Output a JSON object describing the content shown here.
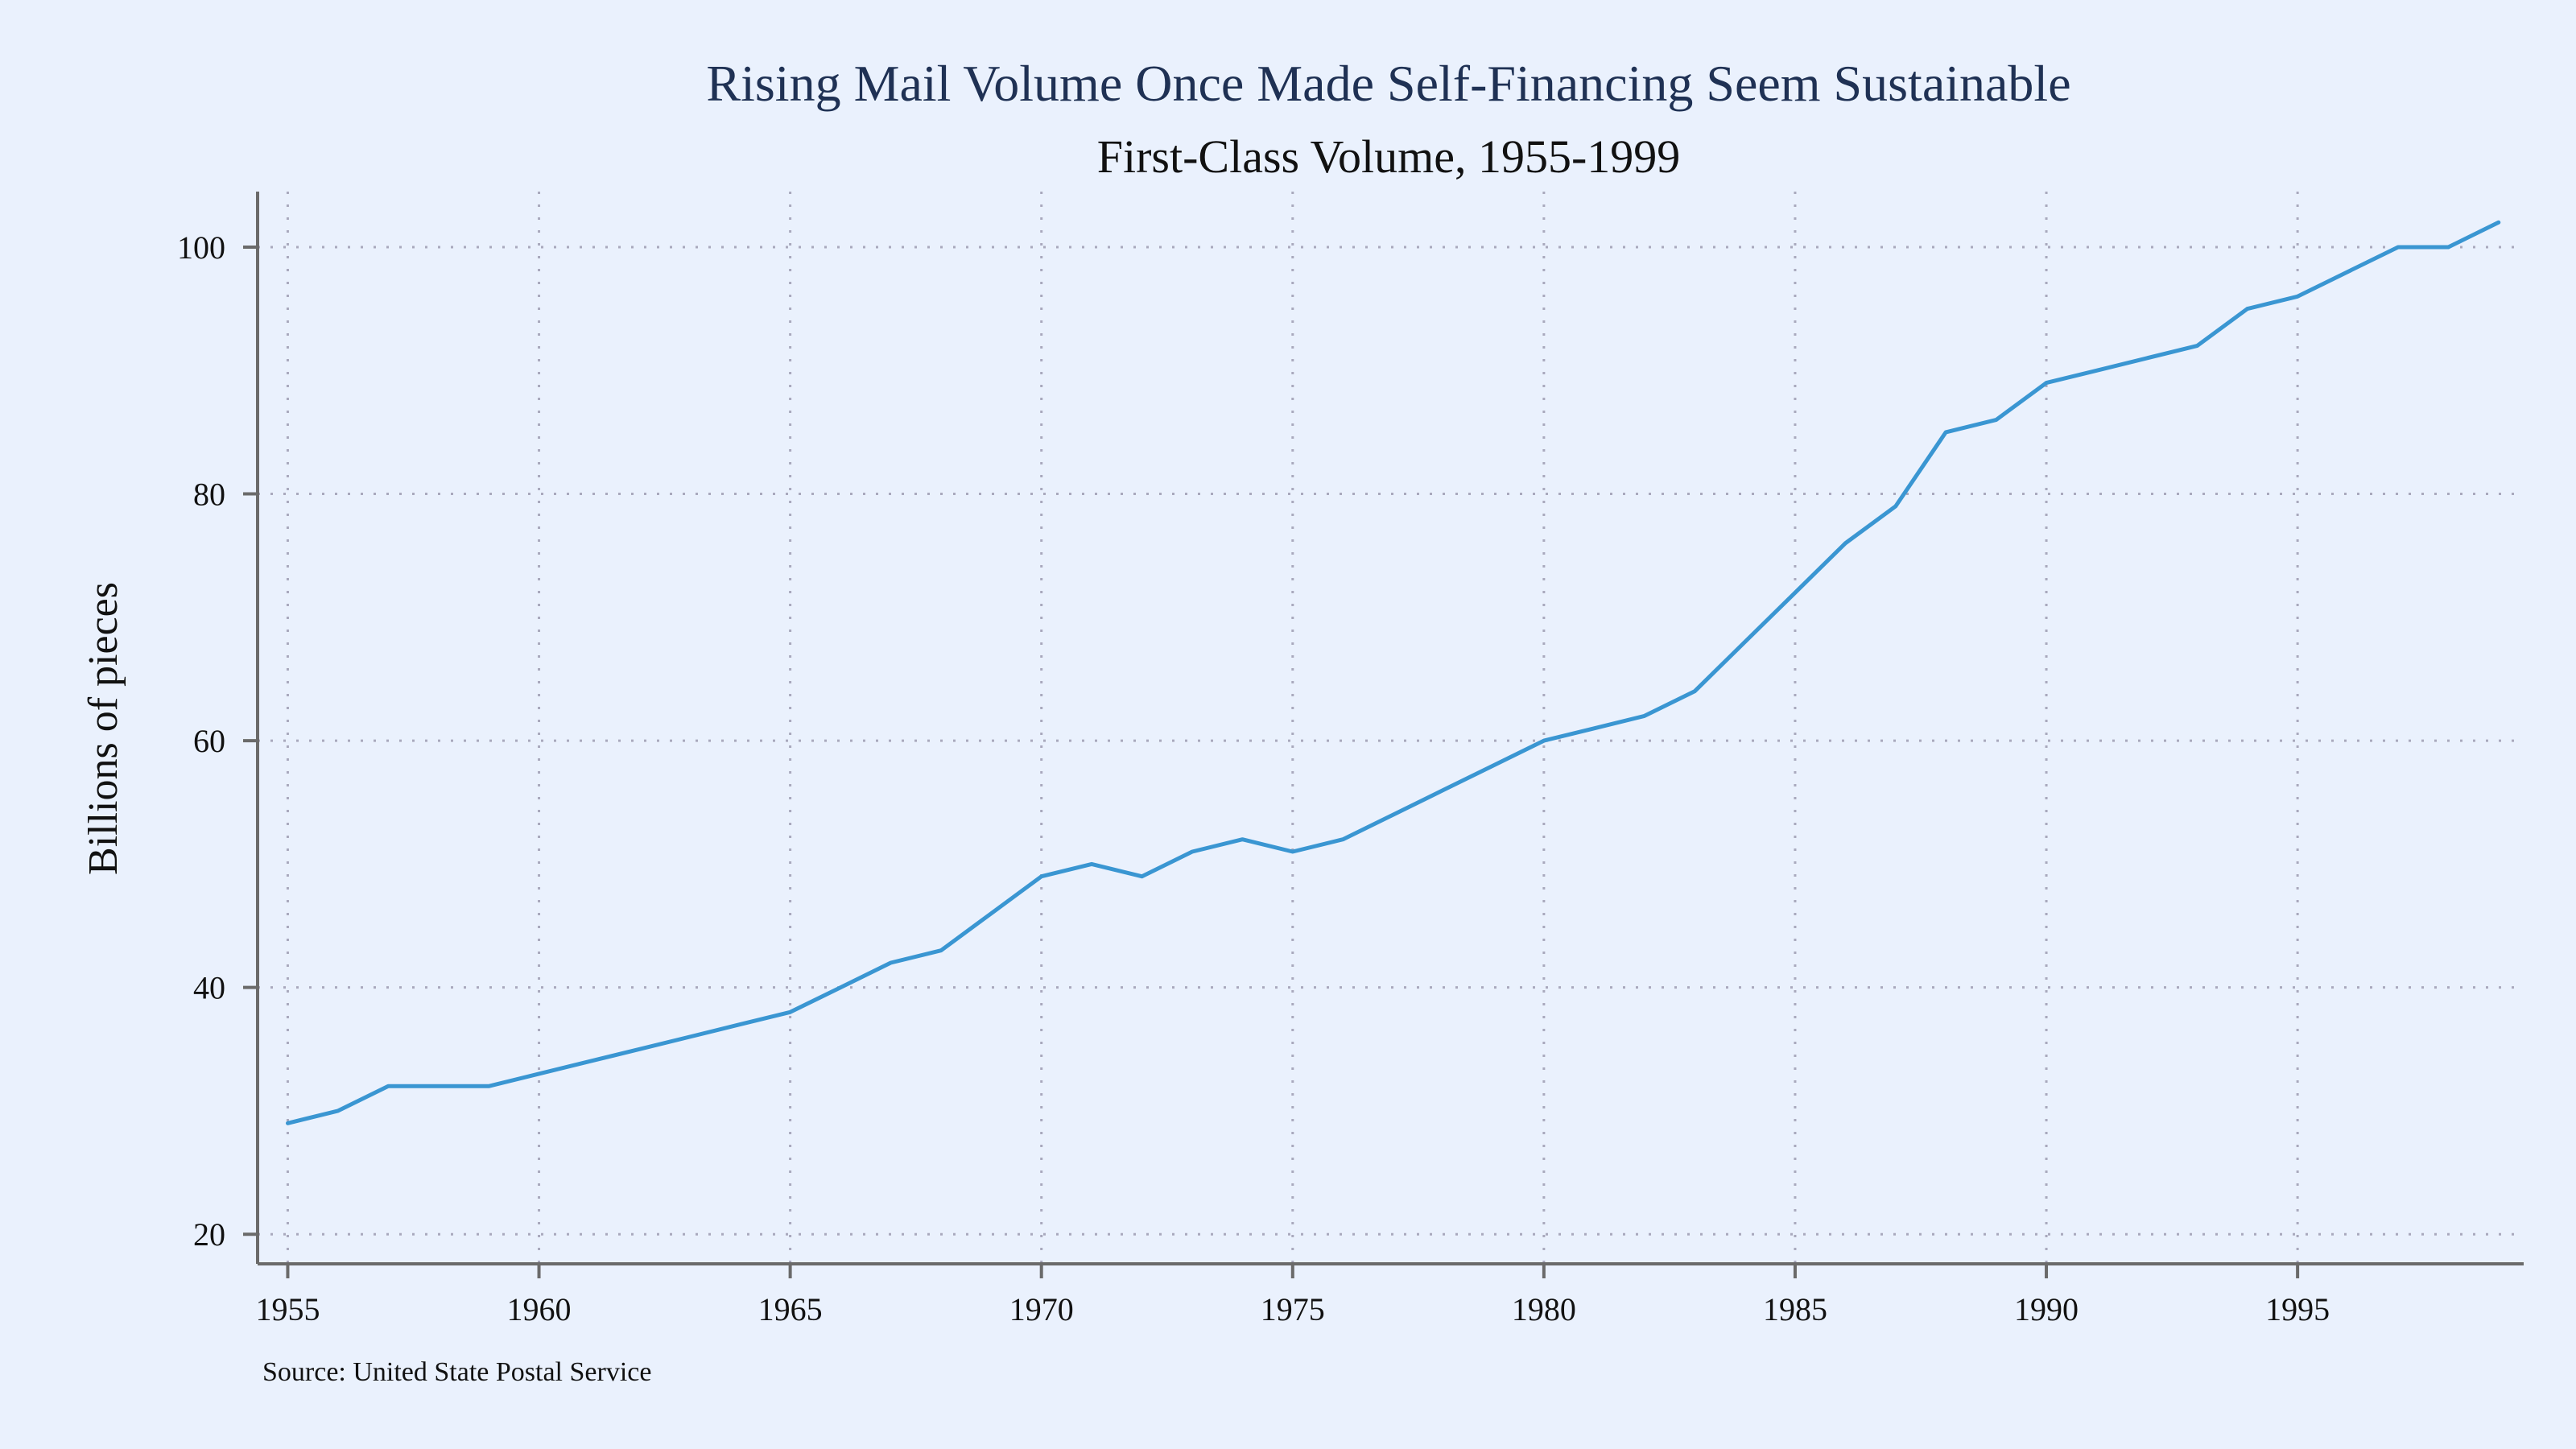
{
  "chart_data": {
    "type": "line",
    "title": "Rising Mail Volume Once Made Self-Financing Seem Sustainable",
    "subtitle": "First-Class Volume, 1955-1999",
    "xlabel": "",
    "ylabel": "Billions of pieces",
    "source": "Source: United State Postal Service",
    "xlim": [
      1954.4,
      1999.5
    ],
    "ylim": [
      17.6,
      104.5
    ],
    "xticks": [
      1955,
      1960,
      1965,
      1970,
      1975,
      1980,
      1985,
      1990,
      1995
    ],
    "yticks": [
      20,
      40,
      60,
      80,
      100
    ],
    "grid": true,
    "line_color": "#3a96d2",
    "series": [
      {
        "x": [
          1955,
          1956,
          1957,
          1958,
          1959,
          1960,
          1961,
          1962,
          1963,
          1964,
          1965,
          1966,
          1967,
          1968,
          1969,
          1970,
          1971,
          1972,
          1973,
          1974,
          1975,
          1976,
          1977,
          1978,
          1979,
          1980,
          1981,
          1982,
          1983,
          1984,
          1985,
          1986,
          1987,
          1988,
          1989,
          1990,
          1991,
          1992,
          1993,
          1994,
          1995,
          1996,
          1997,
          1998,
          1999
        ],
        "values": [
          29,
          30,
          32,
          32,
          32,
          33,
          34,
          35,
          36,
          37,
          38,
          40,
          42,
          43,
          46,
          49,
          50,
          49,
          51,
          52,
          51,
          52,
          54,
          56,
          58,
          60,
          61,
          62,
          64,
          68,
          72,
          76,
          79,
          85,
          86,
          89,
          90,
          91,
          92,
          95,
          96,
          98,
          100,
          100,
          102
        ]
      }
    ]
  }
}
